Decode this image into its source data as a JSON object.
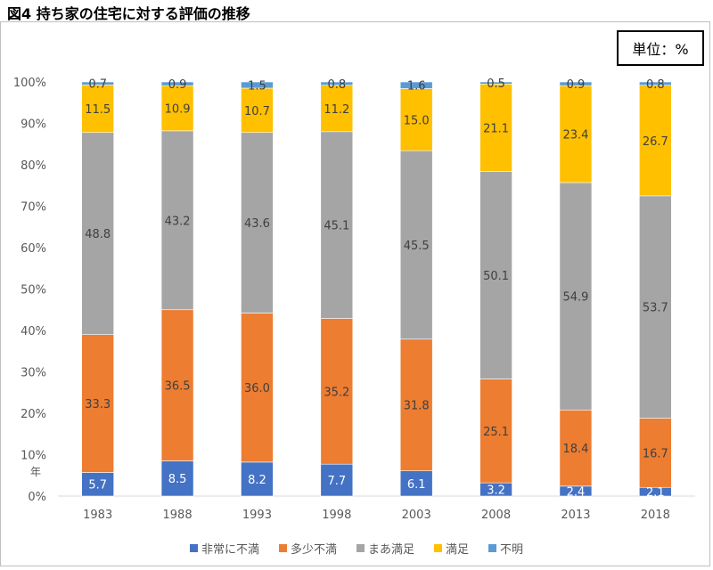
{
  "title": "図4 持ち家の住宅に対する評価の推移",
  "unit_label": "単位：%",
  "chart_data": {
    "type": "bar",
    "stacked": true,
    "categories": [
      "1983",
      "1988",
      "1993",
      "1998",
      "2003",
      "2008",
      "2013",
      "2018"
    ],
    "x_unit_label": "年",
    "ylim": [
      0,
      100
    ],
    "y_ticks": [
      "0%",
      "10%",
      "20%",
      "30%",
      "40%",
      "50%",
      "60%",
      "70%",
      "80%",
      "90%",
      "100%"
    ],
    "grid": false,
    "legend_position": "bottom",
    "series": [
      {
        "name": "非常に不満",
        "color": "#4472c4",
        "values": [
          5.7,
          8.5,
          8.2,
          7.7,
          6.1,
          3.2,
          2.4,
          2.1
        ],
        "labels": [
          "5.7",
          "8.5",
          "8.2",
          "7.7",
          "6.1",
          "3.2",
          "2.4",
          "2.1"
        ],
        "label_color": "#ffffff"
      },
      {
        "name": "多少不満",
        "color": "#ed7d31",
        "values": [
          33.3,
          36.5,
          36.0,
          35.2,
          31.8,
          25.1,
          18.4,
          16.7
        ],
        "labels": [
          "33.3",
          "36.5",
          "36.0",
          "35.2",
          "31.8",
          "25.1",
          "18.4",
          "16.7"
        ],
        "label_color": "#404040"
      },
      {
        "name": "まあ満足",
        "color": "#a5a5a5",
        "values": [
          48.8,
          43.2,
          43.6,
          45.1,
          45.5,
          50.1,
          54.9,
          53.7
        ],
        "labels": [
          "48.8",
          "43.2",
          "43.6",
          "45.1",
          "45.5",
          "50.1",
          "54.9",
          "53.7"
        ],
        "label_color": "#404040"
      },
      {
        "name": "満足",
        "color": "#ffc000",
        "values": [
          11.5,
          10.9,
          10.7,
          11.2,
          15.0,
          21.1,
          23.4,
          26.7
        ],
        "labels": [
          "11.5",
          "10.9",
          "10.7",
          "11.2",
          "15.0",
          "21.1",
          "23.4",
          "26.7"
        ],
        "label_color": "#404040"
      },
      {
        "name": "不明",
        "color": "#5b9bd5",
        "values": [
          0.7,
          0.9,
          1.5,
          0.8,
          1.6,
          0.5,
          0.9,
          0.8
        ],
        "labels": [
          "0.7",
          "0.9",
          "1.5",
          "0.8",
          "1.6",
          "0.5",
          "0.9",
          "0.8"
        ],
        "label_color": "#404040"
      }
    ]
  }
}
